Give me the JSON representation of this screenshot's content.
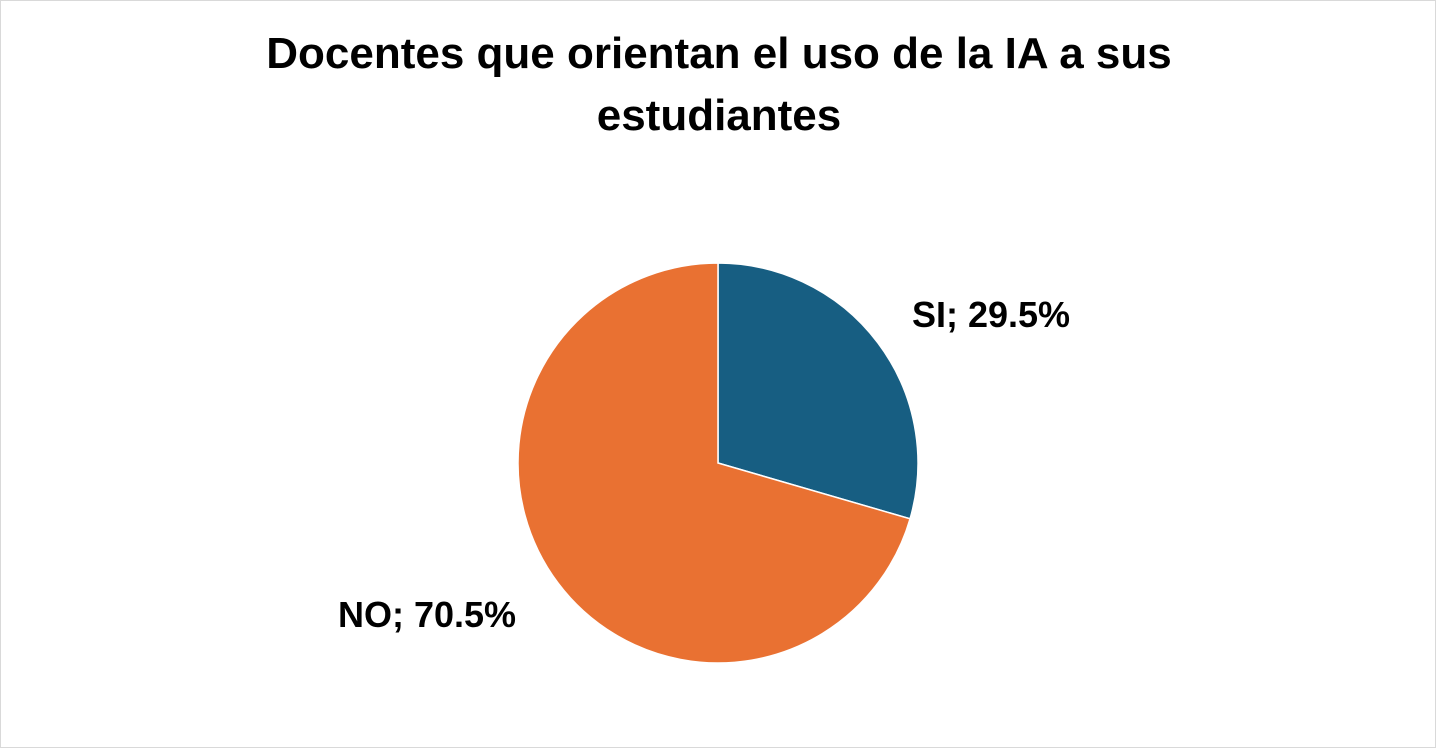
{
  "chart_data": {
    "type": "pie",
    "title_lines": [
      "Docentes que orientan el uso de la IA a sus",
      "estudiantes"
    ],
    "categories": [
      "SI",
      "NO"
    ],
    "values": [
      29.5,
      70.5
    ],
    "unit": "%",
    "data_labels": [
      "SI; 29.5%",
      "NO; 70.5%"
    ],
    "colors": [
      "#175E82",
      "#E97132"
    ],
    "start_angle_deg": 0,
    "direction": "clockwise",
    "legend": "none"
  }
}
